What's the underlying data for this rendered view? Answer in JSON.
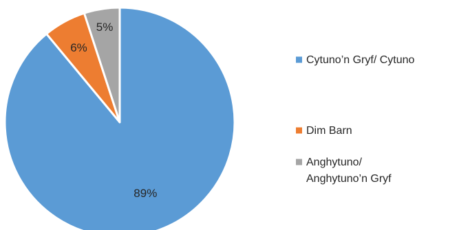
{
  "chart_data": {
    "type": "pie",
    "title": "",
    "start_angle_deg": 0,
    "direction": "clockwise",
    "legend_position": "right",
    "slices": [
      {
        "label": "Cytuno’n Gryf/ Cytuno",
        "label_lines": [
          "Cytuno’n Gryf/ Cytuno"
        ],
        "value": 89,
        "data_label": "89%",
        "color": "#5B9BD5"
      },
      {
        "label": "Dim Barn",
        "label_lines": [
          "Dim Barn"
        ],
        "value": 6,
        "data_label": "6%",
        "color": "#ED7D31"
      },
      {
        "label": "Anghytuno/ Anghytuno’n Gryf",
        "label_lines": [
          "Anghytuno/",
          "Anghytuno’n Gryf"
        ],
        "value": 5,
        "data_label": "5%",
        "color": "#A5A5A5"
      }
    ]
  }
}
